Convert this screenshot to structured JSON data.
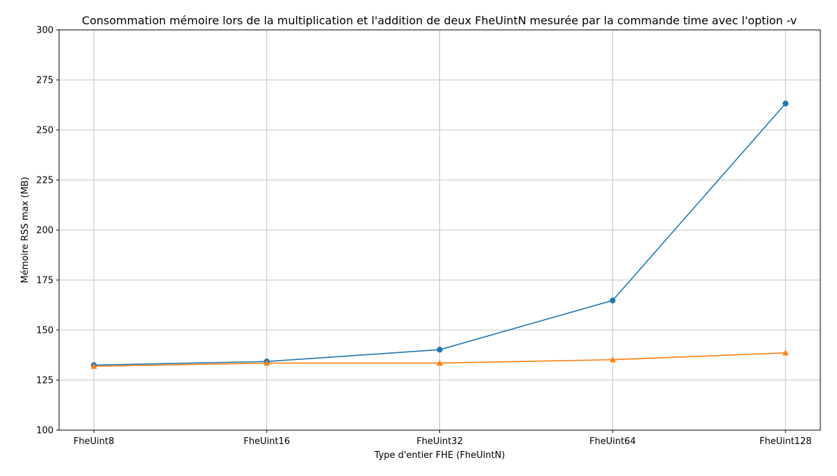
{
  "chart_data": {
    "type": "line",
    "title": "Consommation mémoire lors de la multiplication et l'addition de deux FheUintN mesurée par la commande time avec l'option -v",
    "xlabel": "Type d'entier FHE (FheUintN)",
    "ylabel": "Mémoire RSS max (MB)",
    "categories": [
      "FheUint8",
      "FheUint16",
      "FheUint32",
      "FheUint64",
      "FheUint128"
    ],
    "ylim": [
      100,
      300
    ],
    "yticks": [
      100,
      125,
      150,
      175,
      200,
      225,
      250,
      275,
      300
    ],
    "grid": true,
    "series": [
      {
        "marker": "circle",
        "color": "#1f77b4",
        "values": [
          132.5,
          134.3,
          140.2,
          164.8,
          263.2
        ]
      },
      {
        "marker": "triangle",
        "color": "#ff7f0e",
        "values": [
          131.9,
          133.5,
          133.5,
          135.2,
          138.6
        ]
      }
    ]
  }
}
